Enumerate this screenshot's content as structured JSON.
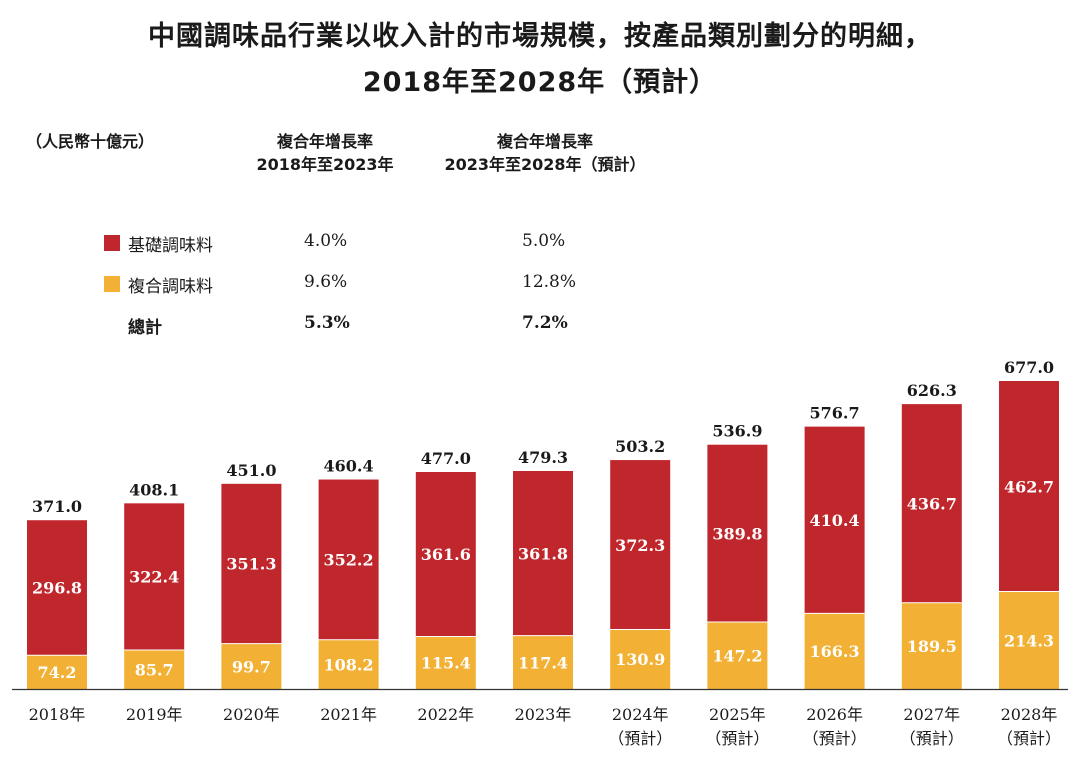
{
  "title_line1": "中國調味品行業以收入計的市場規模，按產品類別劃分的明細，",
  "title_line2": "2018年至2028年（預計）",
  "unit_label": "（人民幣十億元）",
  "cagr_header_1": {
    "line1": "複合年增長率",
    "line2": "2018年至2023年"
  },
  "cagr_header_2": {
    "line1": "複合年增長率",
    "line2": "2023年至2028年（預計）"
  },
  "legend": [
    {
      "name": "基礎調味料",
      "color": "#c0272d",
      "cagr_2018_2023": "4.0%",
      "cagr_2023_2028": "5.0%"
    },
    {
      "name": "複合調味料",
      "color": "#f2b134",
      "cagr_2018_2023": "9.6%",
      "cagr_2023_2028": "12.8%"
    },
    {
      "name": "總計",
      "cagr_2018_2023": "5.3%",
      "cagr_2023_2028": "7.2%"
    }
  ],
  "chart_data": {
    "type": "bar",
    "stacked": true,
    "title": "中國調味品行業以收入計的市場規模，按產品類別劃分的明細，2018年至2028年（預計）",
    "ylabel": "人民幣十億元",
    "ylim": [
      0,
      700
    ],
    "categories": [
      {
        "year": "2018年",
        "note": ""
      },
      {
        "year": "2019年",
        "note": ""
      },
      {
        "year": "2020年",
        "note": ""
      },
      {
        "year": "2021年",
        "note": ""
      },
      {
        "year": "2022年",
        "note": ""
      },
      {
        "year": "2023年",
        "note": ""
      },
      {
        "year": "2024年",
        "note": "（預計）"
      },
      {
        "year": "2025年",
        "note": "（預計）"
      },
      {
        "year": "2026年",
        "note": "（預計）"
      },
      {
        "year": "2027年",
        "note": "（預計）"
      },
      {
        "year": "2028年",
        "note": "（預計）"
      }
    ],
    "series": [
      {
        "name": "複合調味料",
        "color": "#f2b134",
        "values": [
          74.2,
          85.7,
          99.7,
          108.2,
          115.4,
          117.4,
          130.9,
          147.2,
          166.3,
          189.5,
          214.3
        ]
      },
      {
        "name": "基礎調味料",
        "color": "#c0272d",
        "values": [
          296.8,
          322.4,
          351.3,
          352.2,
          361.6,
          361.8,
          372.3,
          389.8,
          410.4,
          436.7,
          462.7
        ]
      }
    ],
    "totals": [
      371.0,
      408.1,
      451.0,
      460.4,
      477.0,
      479.3,
      503.2,
      536.9,
      576.7,
      626.3,
      677.0
    ]
  }
}
